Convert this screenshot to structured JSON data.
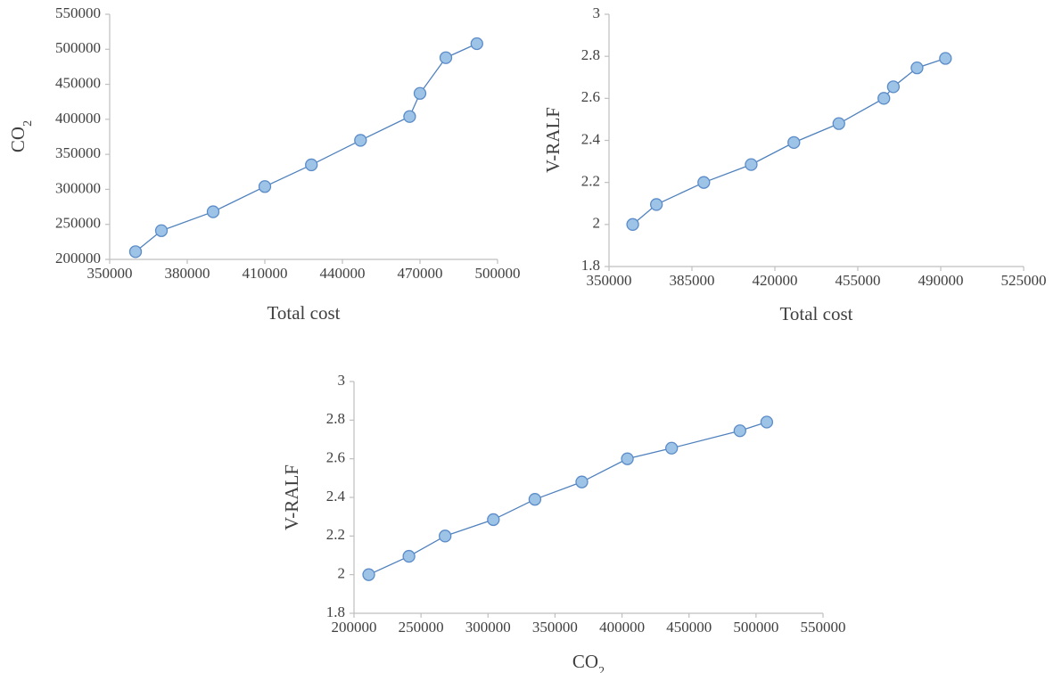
{
  "chart_data": [
    {
      "type": "line",
      "xlabel": "Total cost",
      "ylabel": {
        "base": "CO",
        "sub": "2"
      },
      "xlim": [
        350000,
        500000
      ],
      "ylim": [
        200000,
        550000
      ],
      "xticks": [
        350000,
        380000,
        410000,
        440000,
        470000,
        500000
      ],
      "yticks": [
        200000,
        250000,
        300000,
        350000,
        400000,
        450000,
        500000,
        550000
      ],
      "grid": false,
      "series": [
        {
          "color": "#4f81bd",
          "marker_fill": "#9dc3e6",
          "marker_stroke": "#5b8cc9",
          "x": [
            360000,
            370000,
            390000,
            410000,
            428000,
            447000,
            466000,
            470000,
            480000,
            492000
          ],
          "y": [
            211000,
            241000,
            268000,
            304000,
            335000,
            370000,
            404000,
            437000,
            488000,
            508000
          ]
        }
      ]
    },
    {
      "type": "line",
      "xlabel": "Total cost",
      "ylabel": "V-RALF",
      "xlim": [
        350000,
        525000
      ],
      "ylim": [
        1.8,
        3
      ],
      "xticks": [
        350000,
        385000,
        420000,
        455000,
        490000,
        525000
      ],
      "yticks": [
        1.8,
        2,
        2.2,
        2.4,
        2.6,
        2.8,
        3
      ],
      "grid": false,
      "series": [
        {
          "color": "#4f81bd",
          "marker_fill": "#9dc3e6",
          "marker_stroke": "#5b8cc9",
          "x": [
            360000,
            370000,
            390000,
            410000,
            428000,
            447000,
            466000,
            470000,
            480000,
            492000
          ],
          "y": [
            2.0,
            2.095,
            2.2,
            2.285,
            2.39,
            2.48,
            2.6,
            2.655,
            2.745,
            2.79
          ]
        }
      ]
    },
    {
      "type": "line",
      "xlabel": {
        "base": "CO",
        "sub": "2"
      },
      "ylabel": "V-RALF",
      "xlim": [
        200000,
        550000
      ],
      "ylim": [
        1.8,
        3
      ],
      "xticks": [
        200000,
        250000,
        300000,
        350000,
        400000,
        450000,
        500000,
        550000
      ],
      "yticks": [
        1.8,
        2,
        2.2,
        2.4,
        2.6,
        2.8,
        3
      ],
      "grid": false,
      "series": [
        {
          "color": "#4f81bd",
          "marker_fill": "#9dc3e6",
          "marker_stroke": "#5b8cc9",
          "x": [
            211000,
            241000,
            268000,
            304000,
            335000,
            370000,
            404000,
            437000,
            488000,
            508000
          ],
          "y": [
            2.0,
            2.095,
            2.2,
            2.285,
            2.39,
            2.48,
            2.6,
            2.655,
            2.745,
            2.79
          ]
        }
      ]
    }
  ]
}
